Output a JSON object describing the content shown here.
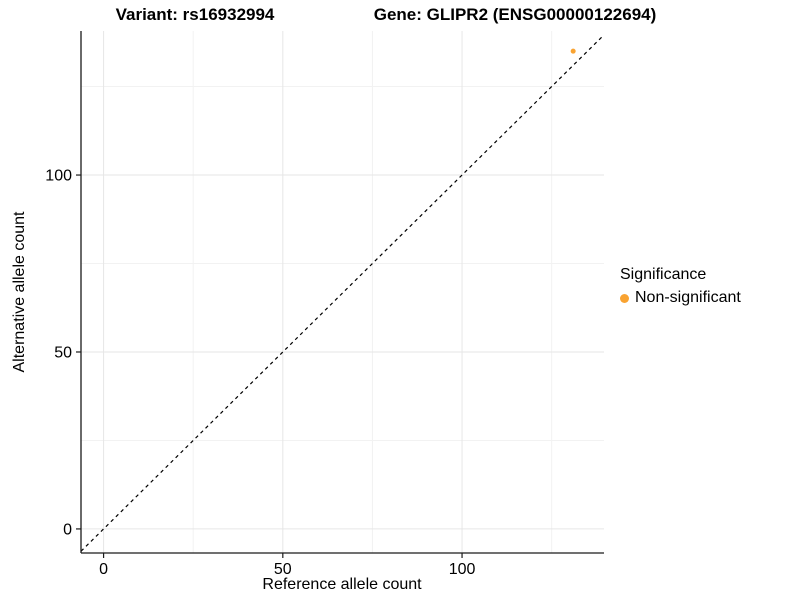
{
  "figure": {
    "title_left": "Variant: rs16932994",
    "title_right": "Gene: GLIPR2 (ENSG00000122694)"
  },
  "chart_data": {
    "type": "scatter",
    "title": "Variant: rs16932994   Gene: GLIPR2 (ENSG00000122694)",
    "xlabel": "Reference allele count",
    "ylabel": "Alternative allele count",
    "xlim": [
      -6.3,
      139.6
    ],
    "ylim": [
      -6.8,
      140.7
    ],
    "x_major_ticks": [
      0,
      50,
      100
    ],
    "y_major_ticks": [
      0,
      50,
      100
    ],
    "x_minor_gridlines": [
      25,
      75,
      125
    ],
    "y_minor_gridlines": [
      25,
      75,
      125
    ],
    "grid": true,
    "identity_line": {
      "equation": "y = x",
      "style": "dashed",
      "color": "#000000"
    },
    "series": [
      {
        "name": "Non-significant",
        "color": "#F9A331",
        "points": [
          {
            "x": 131,
            "y": 135
          }
        ]
      }
    ],
    "legend": {
      "title": "Significance",
      "position": "right",
      "items": [
        {
          "label": "Non-significant",
          "color": "#F9A331"
        }
      ]
    }
  },
  "colors": {
    "background": "#FFFFFF",
    "axis_line": "#1a1a1a",
    "grid_major": "#E6E6E6",
    "grid_minor": "#F2F2F2",
    "tick_text": "#000000",
    "point": "#F9A331"
  }
}
